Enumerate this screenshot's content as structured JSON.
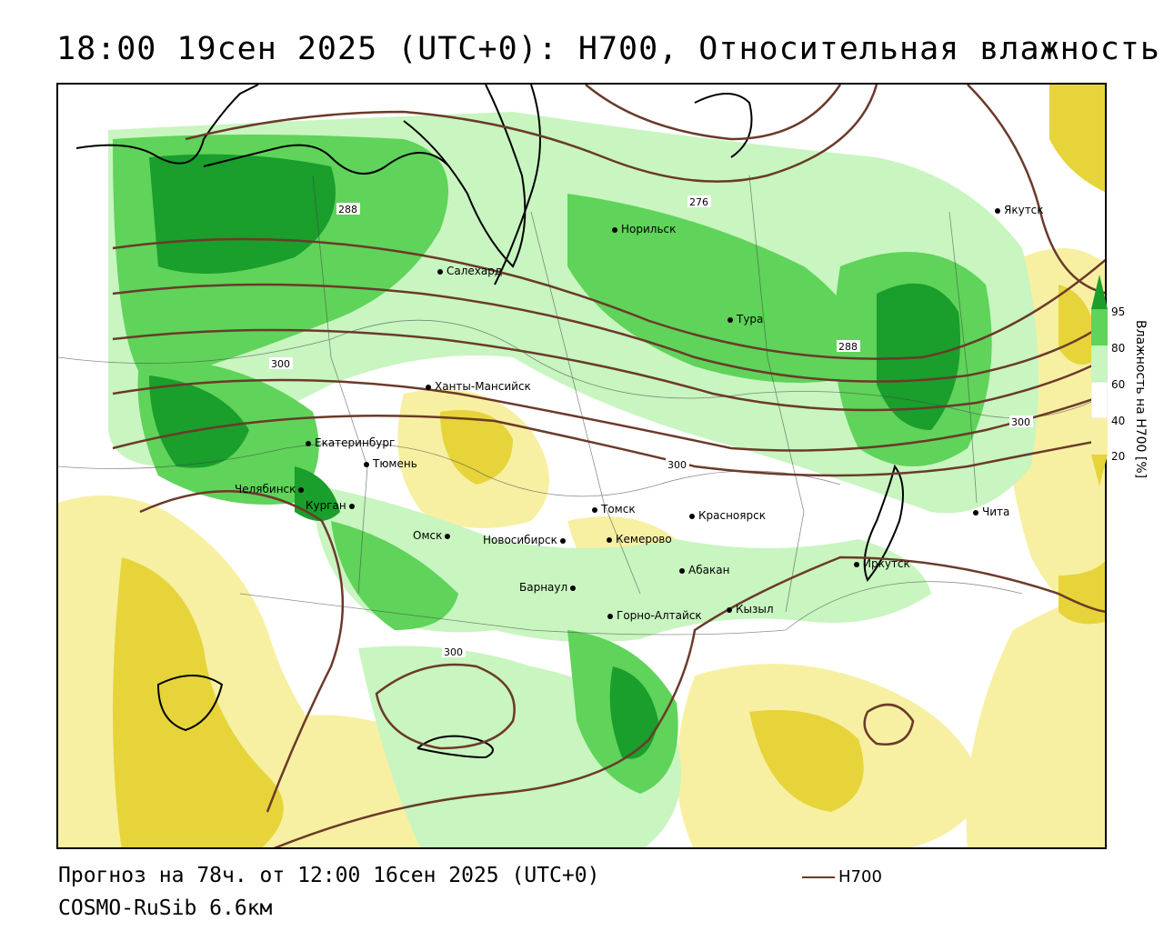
{
  "header": {
    "title": "18:00 19сен 2025 (UTC+0): H700, Относительная влажность"
  },
  "map": {
    "cities": [
      {
        "name": "Якутск"
      },
      {
        "name": "Норильск"
      },
      {
        "name": "Салехард"
      },
      {
        "name": "Тура"
      },
      {
        "name": "Ханты-Мансийск"
      },
      {
        "name": "Екатеринбург"
      },
      {
        "name": "Тюмень"
      },
      {
        "name": "Челябинск"
      },
      {
        "name": "Курган"
      },
      {
        "name": "Омск"
      },
      {
        "name": "Новосибирск"
      },
      {
        "name": "Томск"
      },
      {
        "name": "Кемерово"
      },
      {
        "name": "Красноярск"
      },
      {
        "name": "Абакан"
      },
      {
        "name": "Барнаул"
      },
      {
        "name": "Горно-Алтайск"
      },
      {
        "name": "Кызыл"
      },
      {
        "name": "Иркутск"
      },
      {
        "name": "Чита"
      }
    ],
    "contour_labels": [
      "288",
      "276",
      "288",
      "300",
      "300",
      "300",
      "300"
    ],
    "colors": {
      "dry_dark": "#e6d43a",
      "dry_light": "#f7f0a2",
      "moist_light": "#c8f5c0",
      "moist_mid": "#5fd35a",
      "moist_dark": "#1a9e2c",
      "contour": "#6b3a2a"
    }
  },
  "colorbar": {
    "title": "Влажность на H700 [%]",
    "ticks": [
      "95",
      "80",
      "60",
      "40",
      "20"
    ]
  },
  "legend": {
    "line_label": "H700"
  },
  "footer": {
    "forecast": "Прогноз на 78ч. от 12:00 16сен 2025 (UTC+0)",
    "model": "COSMO-RuSib 6.6км"
  }
}
